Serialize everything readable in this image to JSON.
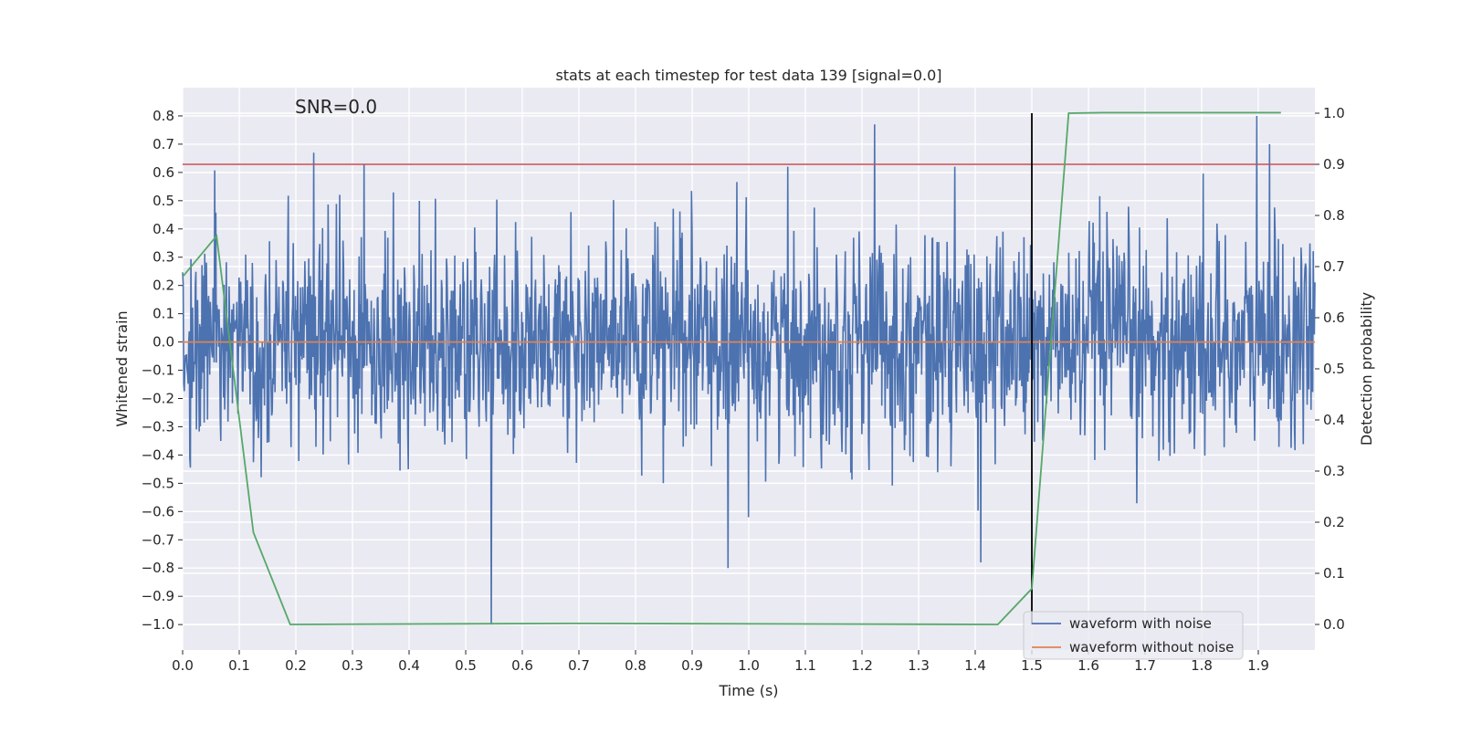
{
  "chart_data": {
    "type": "line",
    "title": "stats at each timestep for test data 139 [signal=0.0]",
    "xlabel": "Time (s)",
    "ylabel": "Whitened strain",
    "y2label": "Detection probability",
    "annotation": "SNR=0.0",
    "xlim": [
      0.0,
      2.0
    ],
    "ylim": [
      -1.09,
      0.9
    ],
    "y2lim": [
      -0.05,
      1.05
    ],
    "x_ticks": [
      "0.0",
      "0.1",
      "0.2",
      "0.3",
      "0.4",
      "0.5",
      "0.6",
      "0.7",
      "0.8",
      "0.9",
      "1.0",
      "1.1",
      "1.2",
      "1.3",
      "1.4",
      "1.5",
      "1.6",
      "1.7",
      "1.8",
      "1.9"
    ],
    "y_ticks": [
      "0.8",
      "0.7",
      "0.6",
      "0.5",
      "0.4",
      "0.3",
      "0.2",
      "0.1",
      "0.0",
      "−0.1",
      "−0.2",
      "−0.3",
      "−0.4",
      "−0.5",
      "−0.6",
      "−0.7",
      "−0.8",
      "−0.9",
      "−1.0"
    ],
    "y2_ticks": [
      "1.0",
      "0.9",
      "0.8",
      "0.7",
      "0.6",
      "0.5",
      "0.4",
      "0.3",
      "0.2",
      "0.1",
      "0.0"
    ],
    "grid": true,
    "legend_position": "lower-right",
    "series": [
      {
        "name": "waveform with noise",
        "color": "#4c72b0",
        "axis": "left",
        "kind": "noise",
        "x_range": [
          0.0,
          2.0
        ],
        "n_points": 2048,
        "approx_std": 0.19,
        "spikes": [
          {
            "x": 0.232,
            "y": 0.67
          },
          {
            "x": 0.32,
            "y": 0.63
          },
          {
            "x": 0.545,
            "y": -1.0
          },
          {
            "x": 0.963,
            "y": -0.8
          },
          {
            "x": 1.222,
            "y": 0.77
          },
          {
            "x": 1.897,
            "y": 0.8
          },
          {
            "x": 1.92,
            "y": 0.7
          },
          {
            "x": 1.41,
            "y": -0.78
          }
        ]
      },
      {
        "name": "waveform without noise",
        "color": "#dd8452",
        "axis": "left",
        "x": [
          0.0,
          2.0
        ],
        "y": [
          0.0,
          0.0
        ]
      },
      {
        "color": "#55a868",
        "axis": "right",
        "x": [
          0.0,
          0.06,
          0.125,
          0.19,
          0.69,
          1.44,
          1.5,
          1.565,
          1.625,
          1.94
        ],
        "y": [
          0.68,
          0.76,
          0.18,
          0.0,
          0.002,
          0.0,
          0.07,
          1.0,
          1.001,
          1.001
        ]
      }
    ],
    "threshold": {
      "axis": "right",
      "value": 0.9,
      "color": "#c44e52"
    },
    "vertical_marker": {
      "x": 1.5,
      "y_from": 0.0,
      "y_to": 1.0,
      "axis": "right",
      "color": "#000000"
    },
    "legend": [
      {
        "label": "waveform with noise",
        "color": "#4c72b0"
      },
      {
        "label": "waveform without noise",
        "color": "#dd8452"
      }
    ]
  }
}
